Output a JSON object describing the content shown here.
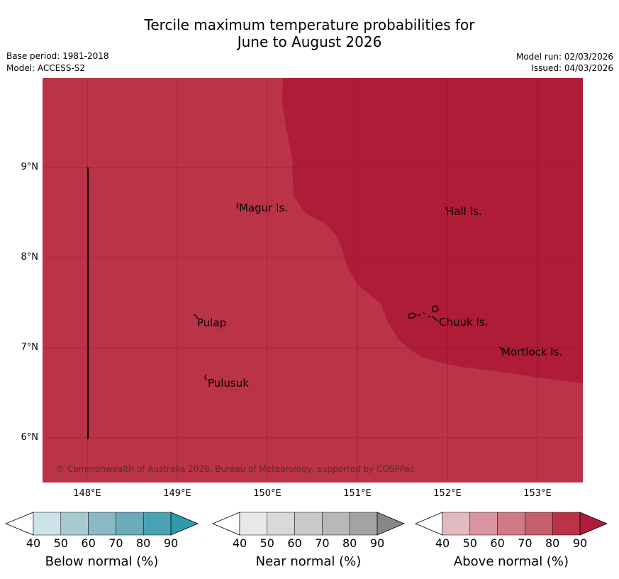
{
  "title": {
    "line1": "Tercile maximum temperature probabilities for",
    "line2": "June to August 2026"
  },
  "meta": {
    "base_period": "Base period: 1981-2018",
    "model": "Model: ACCESS-S2",
    "model_run": "Model run: 02/03/2026",
    "issued": "Issued: 04/03/2026"
  },
  "map": {
    "lat_labels": [
      "9°N",
      "8°N",
      "7°N",
      "6°N"
    ],
    "lon_labels": [
      "148°E",
      "149°E",
      "150°E",
      "151°E",
      "152°E",
      "153°E"
    ],
    "places": [
      "Magur Is.",
      "Hall Is.",
      "Pulap",
      "Chuuk Is.",
      "Mortlock Is.",
      "Pulusuk"
    ],
    "copyright": "© Commonwealth of Australia 2026, Bureau of Meteorology, supported by COSPPac",
    "colors": {
      "above_80": "#bb3347",
      "above_90": "#ae1c38"
    }
  },
  "colorbars": [
    {
      "title": "Below normal (%)",
      "ticks": [
        "40",
        "50",
        "60",
        "70",
        "80",
        "90"
      ],
      "colors": [
        "#ffffff",
        "#cce3ea",
        "#a8cbd2",
        "#8ab8c4",
        "#6babba",
        "#4aa3b4",
        "#2f9aae"
      ]
    },
    {
      "title": "Near normal (%)",
      "ticks": [
        "40",
        "50",
        "60",
        "70",
        "80",
        "90"
      ],
      "colors": [
        "#ffffff",
        "#e8e8e8",
        "#d9d9d9",
        "#c9c9c9",
        "#b8b8b8",
        "#a3a3a3",
        "#878787"
      ]
    },
    {
      "title": "Above normal (%)",
      "ticks": [
        "40",
        "50",
        "60",
        "70",
        "80",
        "90"
      ],
      "colors": [
        "#ffffff",
        "#e3b9c0",
        "#d8959f",
        "#cf7a85",
        "#c75e6b",
        "#bb3347",
        "#ae1c38"
      ]
    }
  ]
}
